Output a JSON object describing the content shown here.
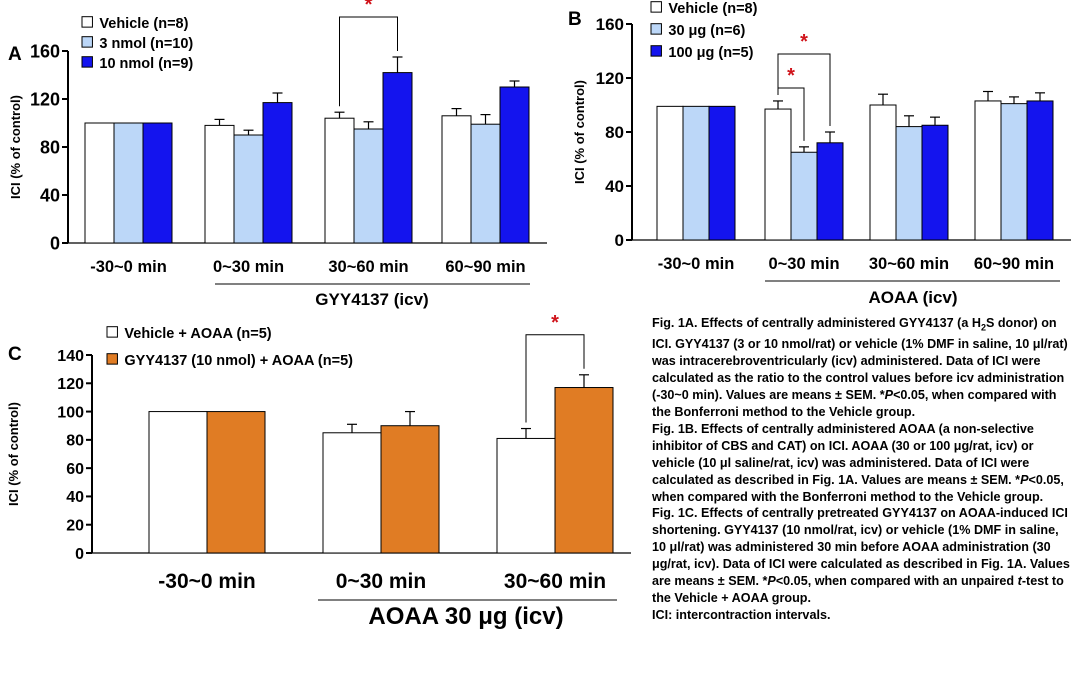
{
  "chart_data": [
    {
      "panel": "A",
      "type": "bar",
      "ylabel": "ICI (% of control)",
      "ylim": [
        0,
        160
      ],
      "yticks": [
        0,
        40,
        80,
        120,
        160
      ],
      "categories": [
        "-30~0 min",
        "0~30 min",
        "30~60 min",
        "60~90 min"
      ],
      "group_label": "GYY4137 (icv)",
      "series": [
        {
          "name": "Vehicle (n=8)",
          "values": [
            100,
            98,
            104,
            106
          ],
          "errors": [
            0,
            5,
            5,
            6
          ],
          "color": "#ffffff"
        },
        {
          "name": "3 nmol (n=10)",
          "values": [
            100,
            90,
            95,
            99
          ],
          "errors": [
            0,
            4,
            6,
            8
          ],
          "color": "#bcd7f8"
        },
        {
          "name": "10 nmol (n=9)",
          "values": [
            100,
            117,
            142,
            130
          ],
          "errors": [
            0,
            8,
            13,
            5
          ],
          "color": "#1414ee"
        }
      ],
      "significance": [
        {
          "label": "*",
          "category": "30~60 min",
          "pair": [
            0,
            2
          ]
        }
      ],
      "legend_position": "top-left"
    },
    {
      "panel": "B",
      "type": "bar",
      "ylabel": "ICI (% of control)",
      "ylim": [
        0,
        160
      ],
      "yticks": [
        0,
        40,
        80,
        120,
        160
      ],
      "categories": [
        "-30~0 min",
        "0~30 min",
        "30~60 min",
        "60~90 min"
      ],
      "group_label": "AOAA (icv)",
      "series": [
        {
          "name": "Vehicle (n=8)",
          "values": [
            99,
            97,
            100,
            103
          ],
          "errors": [
            0,
            6,
            8,
            7
          ],
          "color": "#ffffff"
        },
        {
          "name": "30 μg (n=6)",
          "values": [
            99,
            65,
            84,
            101
          ],
          "errors": [
            0,
            4,
            8,
            5
          ],
          "color": "#bcd7f8"
        },
        {
          "name": "100 μg (n=5)",
          "values": [
            99,
            72,
            85,
            103
          ],
          "errors": [
            0,
            8,
            6,
            6
          ],
          "color": "#1414ee"
        }
      ],
      "significance": [
        {
          "label": "*",
          "category": "0~30 min",
          "pair": [
            0,
            1
          ]
        },
        {
          "label": "*",
          "category": "0~30 min",
          "pair": [
            0,
            2
          ]
        }
      ],
      "legend_position": "top-left"
    },
    {
      "panel": "C",
      "type": "bar",
      "ylabel": "ICI (% of control)",
      "ylim": [
        0,
        140
      ],
      "yticks": [
        0,
        20,
        40,
        60,
        80,
        100,
        120,
        140
      ],
      "categories": [
        "-30~0 min",
        "0~30 min",
        "30~60 min"
      ],
      "group_label": "AOAA 30 μg (icv)",
      "series": [
        {
          "name": "Vehicle + AOAA (n=5)",
          "values": [
            100,
            85,
            81
          ],
          "errors": [
            0,
            6,
            7
          ],
          "color": "#ffffff"
        },
        {
          "name": "GYY4137 (10 nmol) + AOAA (n=5)",
          "values": [
            100,
            90,
            117
          ],
          "errors": [
            0,
            10,
            9
          ],
          "color": "#e07c24"
        }
      ],
      "significance": [
        {
          "label": "*",
          "category": "30~60 min",
          "pair": [
            0,
            1
          ]
        }
      ],
      "legend_position": "top-left"
    }
  ],
  "caption": {
    "p1_pre": "Fig. 1A. Effects of centrally administered GYY4137 (a H",
    "p1_sub": "2",
    "p1_mid": "S donor) on ICI.  GYY4137 (3 or 10 nmol/rat) or vehicle (1% DMF in saline, 10 μl/rat) was intracerebroventricularly (icv) administered.  Data of ICI were calculated as the ratio to the control values before icv administration (-30~0 min).  Values are means ± SEM.  *",
    "p1_p": "P",
    "p1_end": "<0.05, when compared with the Bonferroni method to the Vehicle group.",
    "p2_pre": "Fig. 1B. Effects of centrally administered AOAA (a non-selective inhibitor of CBS and CAT) on ICI.  AOAA (30 or 100 μg/rat, icv) or vehicle (10 μl saline/rat, icv) was administered.  Data of ICI were calculated as described in Fig. 1A.  Values are means ± SEM.  *",
    "p2_p": "P",
    "p2_end": "<0.05, when compared with the Bonferroni method to the Vehicle group.",
    "p3_pre": "Fig. 1C. Effects of centrally pretreated GYY4137 on AOAA-induced ICI shortening.  GYY4137 (10 nmol/rat, icv) or vehicle (1% DMF in saline, 10 μl/rat) was administered 30 min before AOAA administration (30 μg/rat, icv).  Data of ICI were calculated as described in Fig. 1A.  Values are means ± SEM.  *",
    "p3_p": "P",
    "p3_mid": "<0.05, when compared with an unpaired ",
    "p3_t": "t",
    "p3_end": "-test to the Vehicle + AOAA group.",
    "p4": "ICI: intercontraction intervals."
  },
  "colors": {
    "asterisk": "#d0141b",
    "dark_blue": "#1414ee",
    "light_blue": "#bcd7f8",
    "orange": "#e07c24"
  }
}
